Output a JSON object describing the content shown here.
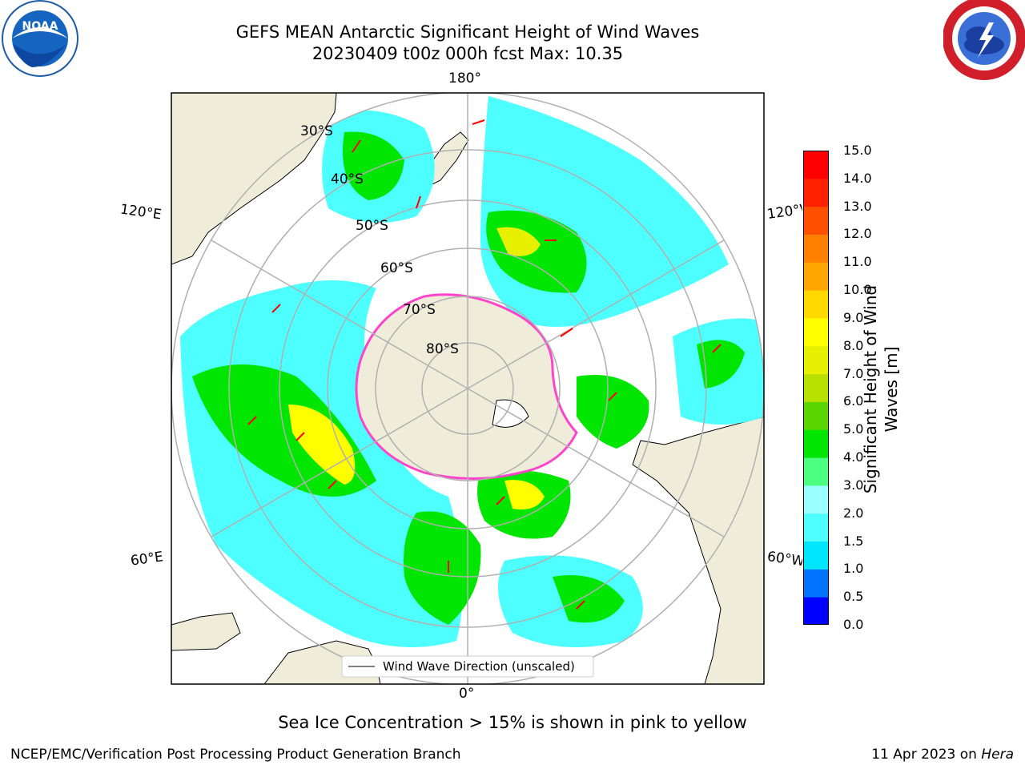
{
  "header": {
    "title_line1": "GEFS MEAN Antarctic Significant Height of Wind Waves",
    "title_line2": "20230409 t00z 000h fcst   Max: 10.35"
  },
  "logos": {
    "left": {
      "icon": "noaa-logo",
      "text": "NOAA"
    },
    "right": {
      "icon": "national-weather-service-logo"
    }
  },
  "map": {
    "lon_labels": {
      "top": "180°",
      "bottom": "0°",
      "upper_left": "120°E",
      "upper_right": "120°W",
      "lower_left": "60°E",
      "lower_right": "60°W"
    },
    "lat_labels": [
      "30°S",
      "40°S",
      "50°S",
      "60°S",
      "70°S",
      "80°S"
    ],
    "legend_label": "Wind Wave Direction (unscaled)",
    "colors": {
      "land": "#efedda",
      "ocean": "#ffffff",
      "grid": "#b0b0b0",
      "arrow": "#ff0000",
      "sea_ice": "#ff44cc"
    }
  },
  "colorbar": {
    "label": "Significant Height of Wind Waves [m]",
    "ticks": [
      "0.0",
      "0.5",
      "1.0",
      "1.5",
      "2.0",
      "3.0",
      "4.0",
      "5.0",
      "6.0",
      "7.0",
      "8.0",
      "9.0",
      "10.0",
      "11.0",
      "12.0",
      "13.0",
      "14.0",
      "15.0"
    ],
    "colors": [
      "#0000ff",
      "#0073ff",
      "#00e6ff",
      "#4dffff",
      "#9cffff",
      "#4dff80",
      "#00e600",
      "#5cd600",
      "#b8e000",
      "#e6f000",
      "#ffff00",
      "#ffd900",
      "#ffa600",
      "#ff8000",
      "#ff5000",
      "#ff2000",
      "#ff0000"
    ]
  },
  "note": "Sea Ice Concentration > 15% is shown in pink to yellow",
  "footer": {
    "left": "NCEP/EMC/Verification Post Processing Product Generation Branch",
    "right_date": "11 Apr 2023 on ",
    "right_machine": "Hera"
  }
}
